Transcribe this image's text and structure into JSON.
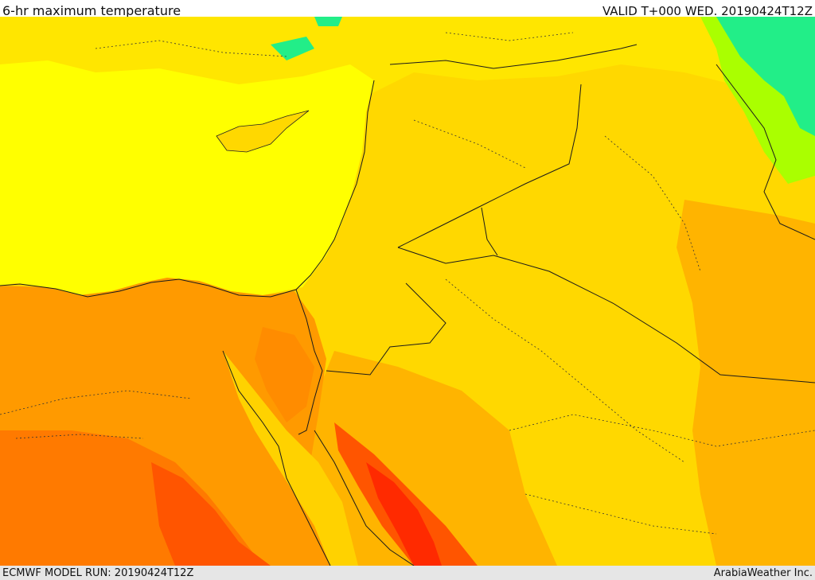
{
  "header": {
    "title": "6-hr maximum temperature",
    "valid": "VALID T+000 WED. 20190424T12Z"
  },
  "footer": {
    "model_run": "ECMWF MODEL RUN: 20190424T12Z",
    "credit": "ArabiaWeather Inc."
  },
  "colors": {
    "sea_yellow": "#ffff00",
    "yellow_orange": "#ffd800",
    "light_orange": "#ffb400",
    "orange": "#ff8c00",
    "dark_orange": "#ff6600",
    "red": "#ff2a00",
    "cool_green": "#aaff00",
    "cool_cyan": "#00ffaa"
  }
}
